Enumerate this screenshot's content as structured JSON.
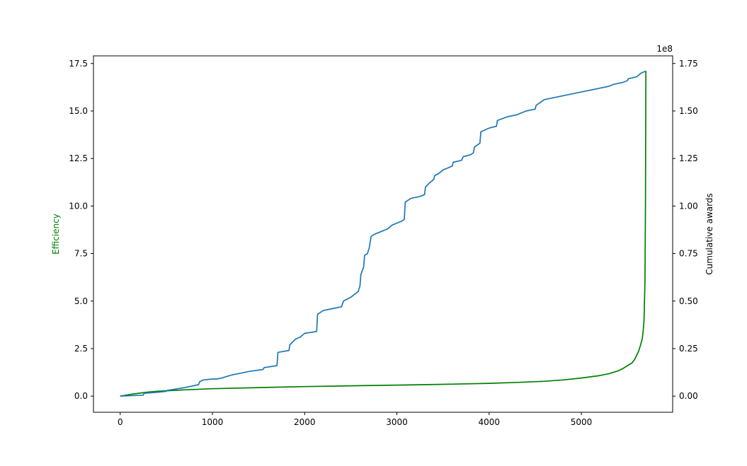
{
  "chart_data": {
    "type": "line",
    "title": "",
    "xlabel": "",
    "ylabel_left": "Efficiency",
    "ylabel_left_color": "#008000",
    "ylabel_right": "Cumulative awards",
    "right_offset_text": "1e8",
    "xlim": [
      -290,
      5990
    ],
    "ylim_left": [
      -0.85,
      17.9
    ],
    "ylim_right": [
      -0.085,
      1.79
    ],
    "x_ticks": [
      0,
      1000,
      2000,
      3000,
      4000,
      5000
    ],
    "x_tick_labels": [
      "0",
      "1000",
      "2000",
      "3000",
      "4000",
      "5000"
    ],
    "y_left_ticks": [
      0,
      2.5,
      5,
      7.5,
      10,
      12.5,
      15,
      17.5
    ],
    "y_left_tick_labels": [
      "0.0",
      "2.5",
      "5.0",
      "7.5",
      "10.0",
      "12.5",
      "15.0",
      "17.5"
    ],
    "y_right_ticks": [
      0,
      0.25,
      0.5,
      0.75,
      1.0,
      1.25,
      1.5,
      1.75
    ],
    "y_right_tick_labels": [
      "0.00",
      "0.25",
      "0.50",
      "0.75",
      "1.00",
      "1.25",
      "1.50",
      "1.75"
    ],
    "grid": false,
    "legend": "none",
    "series": [
      {
        "axis": "left",
        "color": "#008000",
        "x": [
          0,
          100,
          200,
          300,
          400,
          500,
          700,
          1000,
          1500,
          2000,
          2500,
          3000,
          3500,
          4000,
          4300,
          4600,
          4800,
          5000,
          5200,
          5300,
          5400,
          5450,
          5500,
          5550,
          5580,
          5600,
          5620,
          5640,
          5660,
          5670,
          5680,
          5690,
          5695,
          5700
        ],
        "y": [
          0.0,
          0.08,
          0.15,
          0.21,
          0.25,
          0.28,
          0.33,
          0.39,
          0.45,
          0.5,
          0.54,
          0.58,
          0.62,
          0.67,
          0.72,
          0.78,
          0.85,
          0.95,
          1.08,
          1.18,
          1.33,
          1.45,
          1.6,
          1.75,
          1.95,
          2.15,
          2.35,
          2.65,
          3.0,
          3.4,
          4.0,
          6.0,
          10.0,
          17.1
        ]
      },
      {
        "axis": "right",
        "color": "#1f77b4",
        "x": [
          0,
          250,
          260,
          400,
          500,
          510,
          700,
          850,
          860,
          900,
          1000,
          1050,
          1100,
          1200,
          1250,
          1300,
          1400,
          1550,
          1560,
          1700,
          1710,
          1830,
          1840,
          1900,
          1950,
          2000,
          2130,
          2140,
          2200,
          2300,
          2400,
          2420,
          2500,
          2580,
          2600,
          2610,
          2640,
          2650,
          2680,
          2700,
          2720,
          2750,
          2850,
          2900,
          2950,
          3000,
          3050,
          3080,
          3090,
          3150,
          3250,
          3300,
          3310,
          3350,
          3400,
          3410,
          3450,
          3500,
          3550,
          3600,
          3610,
          3700,
          3720,
          3800,
          3830,
          3840,
          3900,
          3910,
          4000,
          4080,
          4090,
          4200,
          4300,
          4400,
          4500,
          4510,
          4600,
          4800,
          5000,
          5200,
          5300,
          5350,
          5450,
          5500,
          5510,
          5600,
          5650,
          5700
        ],
        "y": [
          0.0,
          0.005,
          0.015,
          0.02,
          0.025,
          0.03,
          0.045,
          0.06,
          0.075,
          0.085,
          0.09,
          0.09,
          0.095,
          0.11,
          0.115,
          0.12,
          0.13,
          0.14,
          0.15,
          0.16,
          0.23,
          0.24,
          0.27,
          0.3,
          0.31,
          0.33,
          0.34,
          0.43,
          0.45,
          0.46,
          0.47,
          0.5,
          0.52,
          0.55,
          0.58,
          0.64,
          0.68,
          0.74,
          0.75,
          0.78,
          0.84,
          0.85,
          0.87,
          0.88,
          0.9,
          0.91,
          0.92,
          0.93,
          1.02,
          1.04,
          1.05,
          1.06,
          1.1,
          1.12,
          1.14,
          1.16,
          1.17,
          1.19,
          1.2,
          1.21,
          1.23,
          1.24,
          1.26,
          1.27,
          1.28,
          1.31,
          1.33,
          1.39,
          1.41,
          1.42,
          1.45,
          1.47,
          1.48,
          1.5,
          1.51,
          1.53,
          1.56,
          1.58,
          1.6,
          1.62,
          1.63,
          1.64,
          1.65,
          1.66,
          1.67,
          1.68,
          1.7,
          1.71
        ]
      }
    ]
  }
}
